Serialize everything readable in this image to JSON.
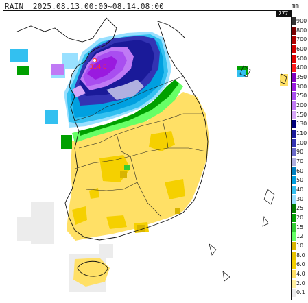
{
  "title": "RAIN  2025.08.13.00:00~08.14.08:00",
  "unit": "mm",
  "max_badge": "777",
  "station": {
    "label": "314.8",
    "color": "#ff3030"
  },
  "legend": [
    {
      "label": "900",
      "color": "#333333"
    },
    {
      "label": "800",
      "color": "#7a0000"
    },
    {
      "label": "700",
      "color": "#b00000"
    },
    {
      "label": "600",
      "color": "#d20000"
    },
    {
      "label": "500",
      "color": "#e00000"
    },
    {
      "label": "400",
      "color": "#ff1a1a"
    },
    {
      "label": "350",
      "color": "#7f00bf"
    },
    {
      "label": "300",
      "color": "#9a1adf"
    },
    {
      "label": "250",
      "color": "#a94ef0"
    },
    {
      "label": "200",
      "color": "#c07af5"
    },
    {
      "label": "150",
      "color": "#d6a6f8"
    },
    {
      "label": "130",
      "color": "#00007a"
    },
    {
      "label": "110",
      "color": "#1a1a99"
    },
    {
      "label": "100",
      "color": "#3333b3"
    },
    {
      "label": "90",
      "color": "#6a6ac9"
    },
    {
      "label": "70",
      "color": "#b0b0e0"
    },
    {
      "label": "60",
      "color": "#0080c0"
    },
    {
      "label": "50",
      "color": "#00a0e0"
    },
    {
      "label": "40",
      "color": "#33c0f0"
    },
    {
      "label": "30",
      "color": "#99e0ff"
    },
    {
      "label": "25",
      "color": "#007a00"
    },
    {
      "label": "20",
      "color": "#00a000"
    },
    {
      "label": "15",
      "color": "#33cc33"
    },
    {
      "label": "12",
      "color": "#66ff66"
    },
    {
      "label": "10",
      "color": "#d8b400"
    },
    {
      "label": "8.0",
      "color": "#e8c400"
    },
    {
      "label": "6.0",
      "color": "#f5d000"
    },
    {
      "label": "4.0",
      "color": "#ffe066"
    },
    {
      "label": "2.0",
      "color": "#fff0a0"
    },
    {
      "label": "0.1",
      "color": "#ececec"
    }
  ]
}
